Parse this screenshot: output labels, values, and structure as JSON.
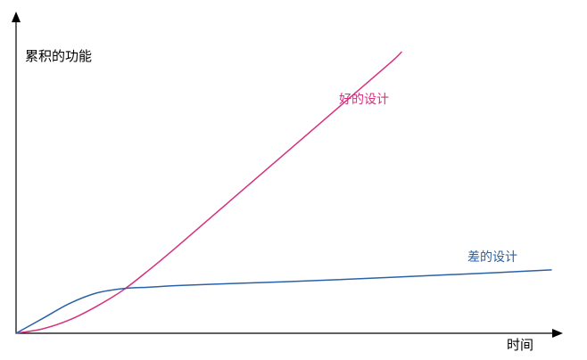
{
  "chart_data": {
    "type": "line",
    "xlabel": "时间",
    "ylabel": "累积的功能",
    "grid": false,
    "legend": "inline",
    "xlim": [
      0,
      100
    ],
    "ylim": [
      0,
      100
    ],
    "colors": {
      "good": "#d6317e",
      "bad": "#2a62a8",
      "axis": "#000000"
    },
    "series": [
      {
        "name": "好的设计",
        "key": "good",
        "x": [
          0,
          5,
          10,
          15,
          20,
          25,
          30,
          40,
          50,
          60,
          70,
          72
        ],
        "y": [
          0,
          1.5,
          4.5,
          9,
          14.5,
          21.5,
          29,
          44.5,
          60,
          75.5,
          91,
          94.5
        ]
      },
      {
        "name": "差的设计",
        "key": "bad",
        "x": [
          0,
          5,
          10,
          15,
          20,
          25,
          30,
          40,
          50,
          60,
          70,
          80,
          90,
          100
        ],
        "y": [
          0,
          5,
          10,
          13.5,
          15,
          15.5,
          16,
          16.7,
          17.3,
          18,
          18.8,
          19.6,
          20.4,
          21.3
        ]
      }
    ]
  }
}
